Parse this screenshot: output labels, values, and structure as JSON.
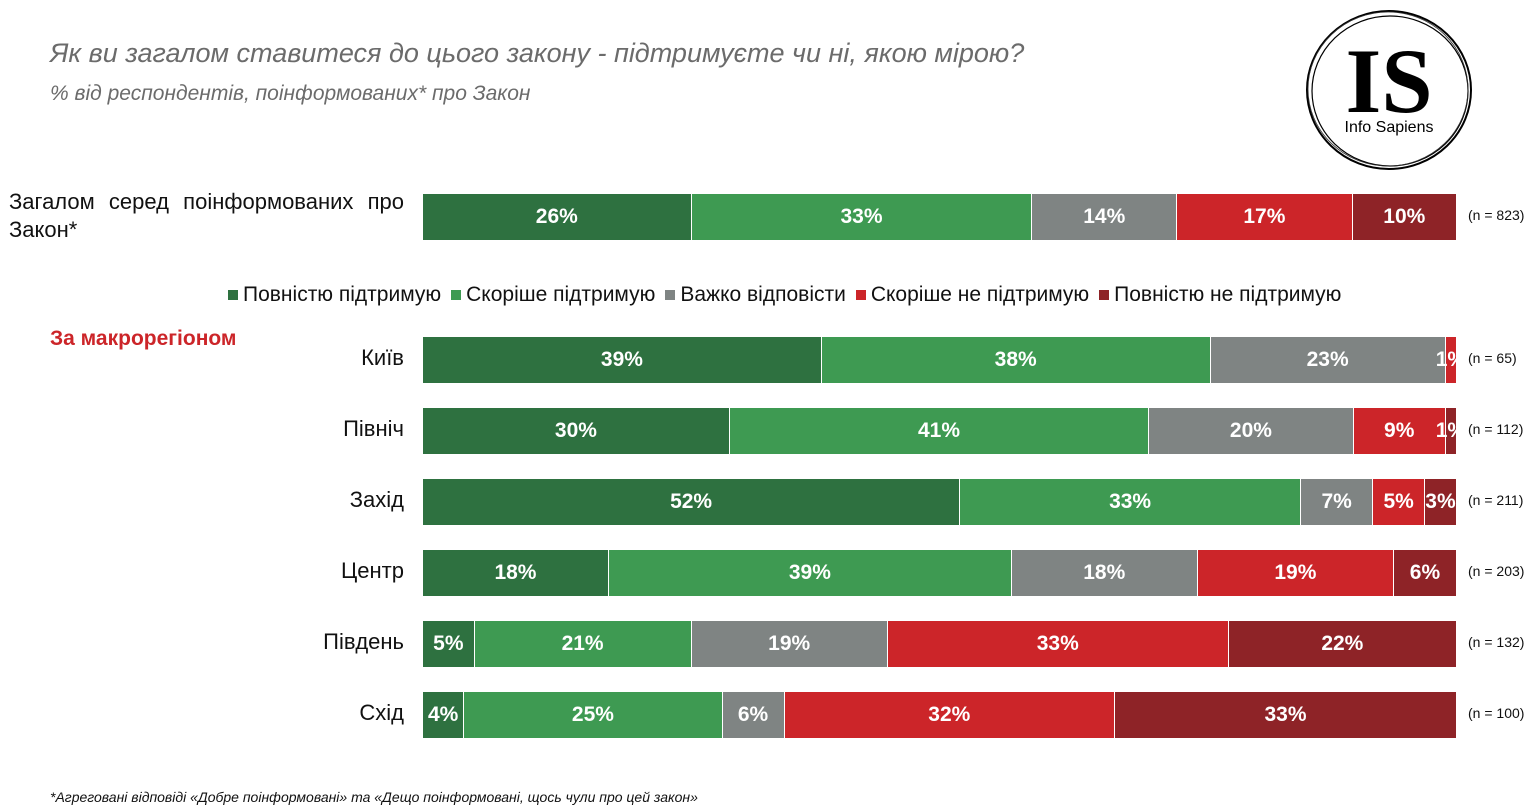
{
  "title": "Як ви загалом ставитеся до цього закону - підтримуєте чи ні, якою мірою?",
  "subtitle": "% від респондентів, поінформованих* про Закон",
  "logo": {
    "text": "IS",
    "caption": "Info Sapiens"
  },
  "section_label": "За макрорегіоном",
  "footnote": "*Агреговані відповіді «Добре поінформовані»  та «Дещо поінформовані,  щось чули про  цей закон»",
  "chart_data": {
    "type": "bar",
    "orientation": "horizontal-stacked-100",
    "series": [
      {
        "name": "Повністю підтримую",
        "color": "#2e7140"
      },
      {
        "name": "Скоріше підтримую",
        "color": "#3e9a52"
      },
      {
        "name": "Важко відповісти",
        "color": "#7f8483"
      },
      {
        "name": "Скоріше не підтримую",
        "color": "#cc2529"
      },
      {
        "name": "Повністю не підтримую",
        "color": "#8e2327"
      }
    ],
    "legend": "middle",
    "rows": [
      {
        "label": "Загалом серед поінформованих про Закон*",
        "values": [
          26,
          33,
          14,
          17,
          10
        ],
        "n": "(n = 823)"
      },
      {
        "label": "Київ",
        "values": [
          39,
          38,
          23,
          1,
          0
        ],
        "n": "(n = 65)"
      },
      {
        "label": "Північ",
        "values": [
          30,
          41,
          20,
          9,
          1
        ],
        "n": "(n = 112)"
      },
      {
        "label": "Захід",
        "values": [
          52,
          33,
          7,
          5,
          3
        ],
        "n": "(n = 211)"
      },
      {
        "label": "Центр",
        "values": [
          18,
          39,
          18,
          19,
          6
        ],
        "n": "(n = 203)"
      },
      {
        "label": "Південь",
        "values": [
          5,
          21,
          19,
          33,
          22
        ],
        "n": "(n = 132)"
      },
      {
        "label": "Схід",
        "values": [
          4,
          25,
          6,
          32,
          33
        ],
        "n": "(n = 100)"
      }
    ]
  }
}
